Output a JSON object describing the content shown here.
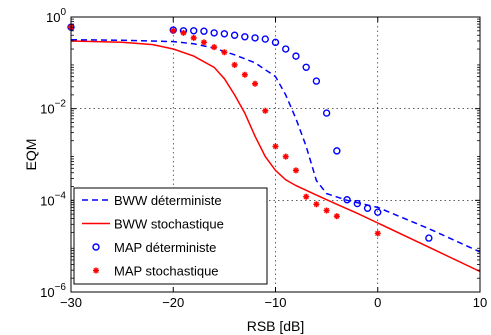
{
  "chart_data": {
    "type": "line",
    "x_scale": "linear",
    "y_scale": "log",
    "xlim": [
      -30,
      10
    ],
    "ylim": [
      1e-06,
      1
    ],
    "xlabel": "RSB [dB]",
    "ylabel": "EQM",
    "grid": true,
    "legend_position": "bottom-left",
    "x_ticks": [
      {
        "value": -30,
        "label": "−30"
      },
      {
        "value": -20,
        "label": "−20"
      },
      {
        "value": -10,
        "label": "−10"
      },
      {
        "value": 0,
        "label": "0"
      },
      {
        "value": 10,
        "label": "10"
      }
    ],
    "y_ticks": [
      {
        "value": 1,
        "base": "10",
        "exp": "0"
      },
      {
        "value": 0.01,
        "base": "10",
        "exp": "−2"
      },
      {
        "value": 0.0001,
        "base": "10",
        "exp": "−4"
      },
      {
        "value": 1e-06,
        "base": "10",
        "exp": "−6"
      }
    ],
    "series": [
      {
        "name": "BWW déterministe",
        "style": "dashed-line",
        "color": "#0000ff",
        "x": [
          -30,
          -25,
          -20,
          -18,
          -16,
          -14,
          -12,
          -10,
          -9,
          -8,
          -7,
          -6,
          -5,
          -3,
          0,
          5,
          10
        ],
        "y": [
          0.32,
          0.31,
          0.29,
          0.26,
          0.21,
          0.15,
          0.1,
          0.05,
          0.02,
          0.006,
          0.0015,
          0.00027,
          0.00014,
          0.0001,
          7e-05,
          2.4e-05,
          7.5e-06
        ]
      },
      {
        "name": "BWW stochastique",
        "style": "solid-line",
        "color": "#ff0000",
        "x": [
          -30,
          -25,
          -22,
          -20,
          -18,
          -16,
          -15,
          -14,
          -13,
          -12,
          -11,
          -10,
          -9,
          -8,
          -6,
          -4,
          -2,
          0,
          5,
          10
        ],
        "y": [
          0.3,
          0.28,
          0.25,
          0.2,
          0.14,
          0.08,
          0.045,
          0.02,
          0.008,
          0.0025,
          0.0009,
          0.00045,
          0.00028,
          0.00021,
          0.00013,
          8.2e-05,
          5.2e-05,
          3.2e-05,
          9.5e-06,
          2.8e-06
        ]
      },
      {
        "name": "MAP déterministe",
        "style": "open-circle",
        "color": "#0000ff",
        "x": [
          -30,
          -20,
          -19,
          -18,
          -17,
          -16,
          -15,
          -14,
          -13,
          -12,
          -11,
          -10,
          -9,
          -8,
          -7,
          -6,
          -5,
          -4,
          -3,
          -2,
          -1,
          0,
          5
        ],
        "y": [
          0.6,
          0.52,
          0.5,
          0.5,
          0.49,
          0.45,
          0.43,
          0.4,
          0.37,
          0.35,
          0.33,
          0.28,
          0.2,
          0.14,
          0.08,
          0.04,
          0.008,
          0.0012,
          0.000103,
          8.5e-05,
          6.7e-05,
          5.5e-05,
          1.5e-05
        ]
      },
      {
        "name": "MAP stochastique",
        "style": "star",
        "color": "#ff0000",
        "x": [
          -30,
          -20,
          -19,
          -18,
          -17,
          -16,
          -15,
          -14,
          -13,
          -12,
          -11,
          -10,
          -9,
          -8,
          -7,
          -6,
          -5,
          -4,
          0
        ],
        "y": [
          0.6,
          0.5,
          0.45,
          0.35,
          0.28,
          0.22,
          0.17,
          0.09,
          0.055,
          0.035,
          0.009,
          0.0015,
          0.0009,
          0.00045,
          0.00012,
          8.2e-05,
          6e-05,
          4.5e-05,
          1.9e-05
        ]
      }
    ]
  }
}
